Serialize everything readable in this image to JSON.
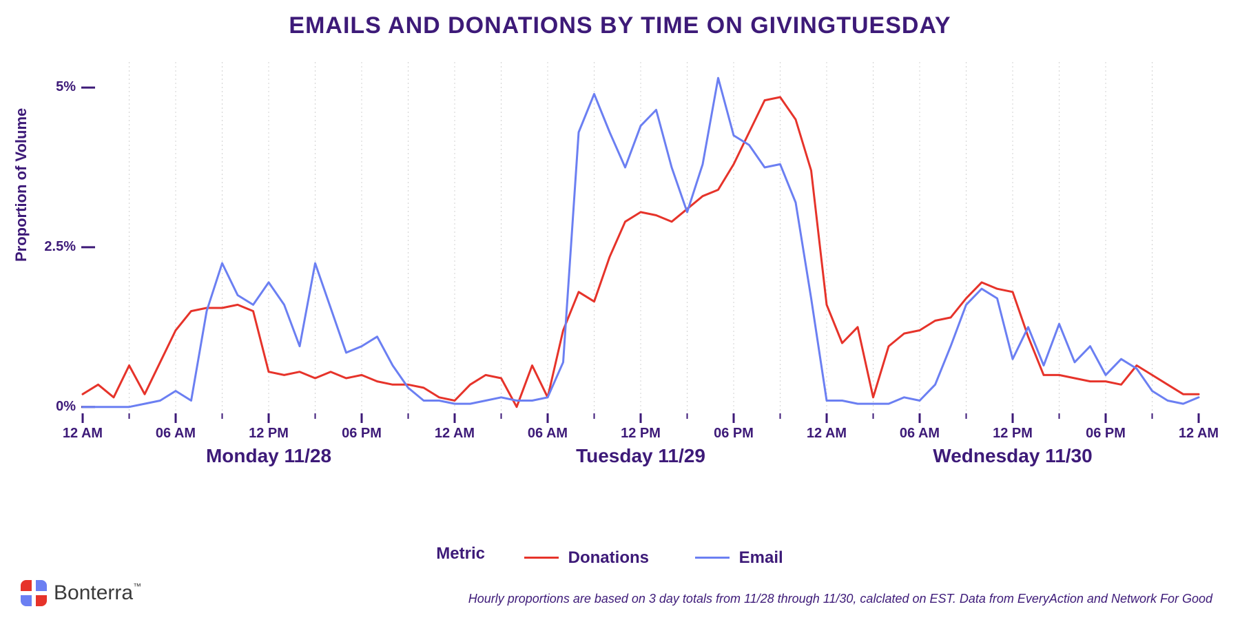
{
  "chart": {
    "type": "line",
    "title": "EMAILS AND DONATIONS BY TIME ON GIVINGTUESDAY",
    "title_fontsize": 34,
    "title_color": "#3d1a78",
    "background_color": "#ffffff",
    "text_color": "#3d1a78",
    "grid_color": "#d0d0d0",
    "axis_color": "#3d1a78",
    "line_width": 3,
    "ylabel": "Proportion of Volume",
    "ylabel_fontsize": 22,
    "ylim": [
      -0.1,
      5.4
    ],
    "yticks": [
      0,
      2.5,
      5
    ],
    "ytick_labels": [
      "0%",
      "2.5%",
      "5%"
    ],
    "x_count": 73,
    "x_major_ticks": [
      0,
      6,
      12,
      18,
      24,
      30,
      36,
      42,
      48,
      54,
      60,
      66,
      72
    ],
    "x_major_labels": [
      "12 AM",
      "06 AM",
      "12 PM",
      "06 PM",
      "12 AM",
      "06 AM",
      "12 PM",
      "06 PM",
      "12 AM",
      "06 AM",
      "12 PM",
      "06 PM",
      "12 AM"
    ],
    "x_minor_step": 3,
    "x_day_positions": [
      12,
      36,
      60
    ],
    "x_day_labels": [
      "Monday 11/28",
      "Tuesday 11/29",
      "Wednesday 11/30"
    ],
    "x_tick_fontsize": 20,
    "x_day_fontsize": 28,
    "series": [
      {
        "name": "Donations",
        "color": "#e6332a",
        "values": [
          0.2,
          0.35,
          0.15,
          0.65,
          0.2,
          0.7,
          1.2,
          1.5,
          1.55,
          1.55,
          1.6,
          1.5,
          0.55,
          0.5,
          0.55,
          0.45,
          0.55,
          0.45,
          0.5,
          0.4,
          0.35,
          0.35,
          0.3,
          0.15,
          0.1,
          0.35,
          0.5,
          0.45,
          0.0,
          0.65,
          0.15,
          1.2,
          1.8,
          1.65,
          2.35,
          2.9,
          3.05,
          3.0,
          2.9,
          3.1,
          3.3,
          3.4,
          3.8,
          4.3,
          4.8,
          4.85,
          4.5,
          3.7,
          1.6,
          1.0,
          1.25,
          0.15,
          0.95,
          1.15,
          1.2,
          1.35,
          1.4,
          1.7,
          1.95,
          1.85,
          1.8,
          1.1,
          0.5,
          0.5,
          0.45,
          0.4,
          0.4,
          0.35,
          0.65,
          0.5,
          0.35,
          0.2,
          0.2
        ]
      },
      {
        "name": "Email",
        "color": "#6b7ff2",
        "values": [
          0.0,
          0.0,
          0.0,
          0.0,
          0.05,
          0.1,
          0.25,
          0.1,
          1.5,
          2.25,
          1.75,
          1.6,
          1.95,
          1.6,
          0.95,
          2.25,
          1.55,
          0.85,
          0.95,
          1.1,
          0.65,
          0.3,
          0.1,
          0.1,
          0.05,
          0.05,
          0.1,
          0.15,
          0.1,
          0.1,
          0.15,
          0.7,
          4.3,
          4.9,
          4.3,
          3.75,
          4.4,
          4.65,
          3.75,
          3.05,
          3.8,
          5.15,
          4.25,
          4.1,
          3.75,
          3.8,
          3.2,
          1.7,
          0.1,
          0.1,
          0.05,
          0.05,
          0.05,
          0.15,
          0.1,
          0.35,
          0.95,
          1.6,
          1.85,
          1.7,
          0.75,
          1.25,
          0.65,
          1.3,
          0.7,
          0.95,
          0.5,
          0.75,
          0.6,
          0.25,
          0.1,
          0.05,
          0.15
        ]
      }
    ]
  },
  "legend": {
    "title": "Metric",
    "items": [
      {
        "label": "Donations",
        "color": "#e6332a"
      },
      {
        "label": "Email",
        "color": "#6b7ff2"
      }
    ],
    "fontsize": 24,
    "text_color": "#3d1a78"
  },
  "footnote": {
    "text": "Hourly proportions are based on 3 day totals from 11/28 through 11/30, calclated on EST. Data from EveryAction and Network For Good",
    "fontsize": 18,
    "color": "#3d1a78"
  },
  "brand": {
    "name": "Bonterra",
    "suffix": "™",
    "icon_colors": [
      "#e6332a",
      "#6b7ff2",
      "#6b7ff2",
      "#e6332a"
    ]
  }
}
